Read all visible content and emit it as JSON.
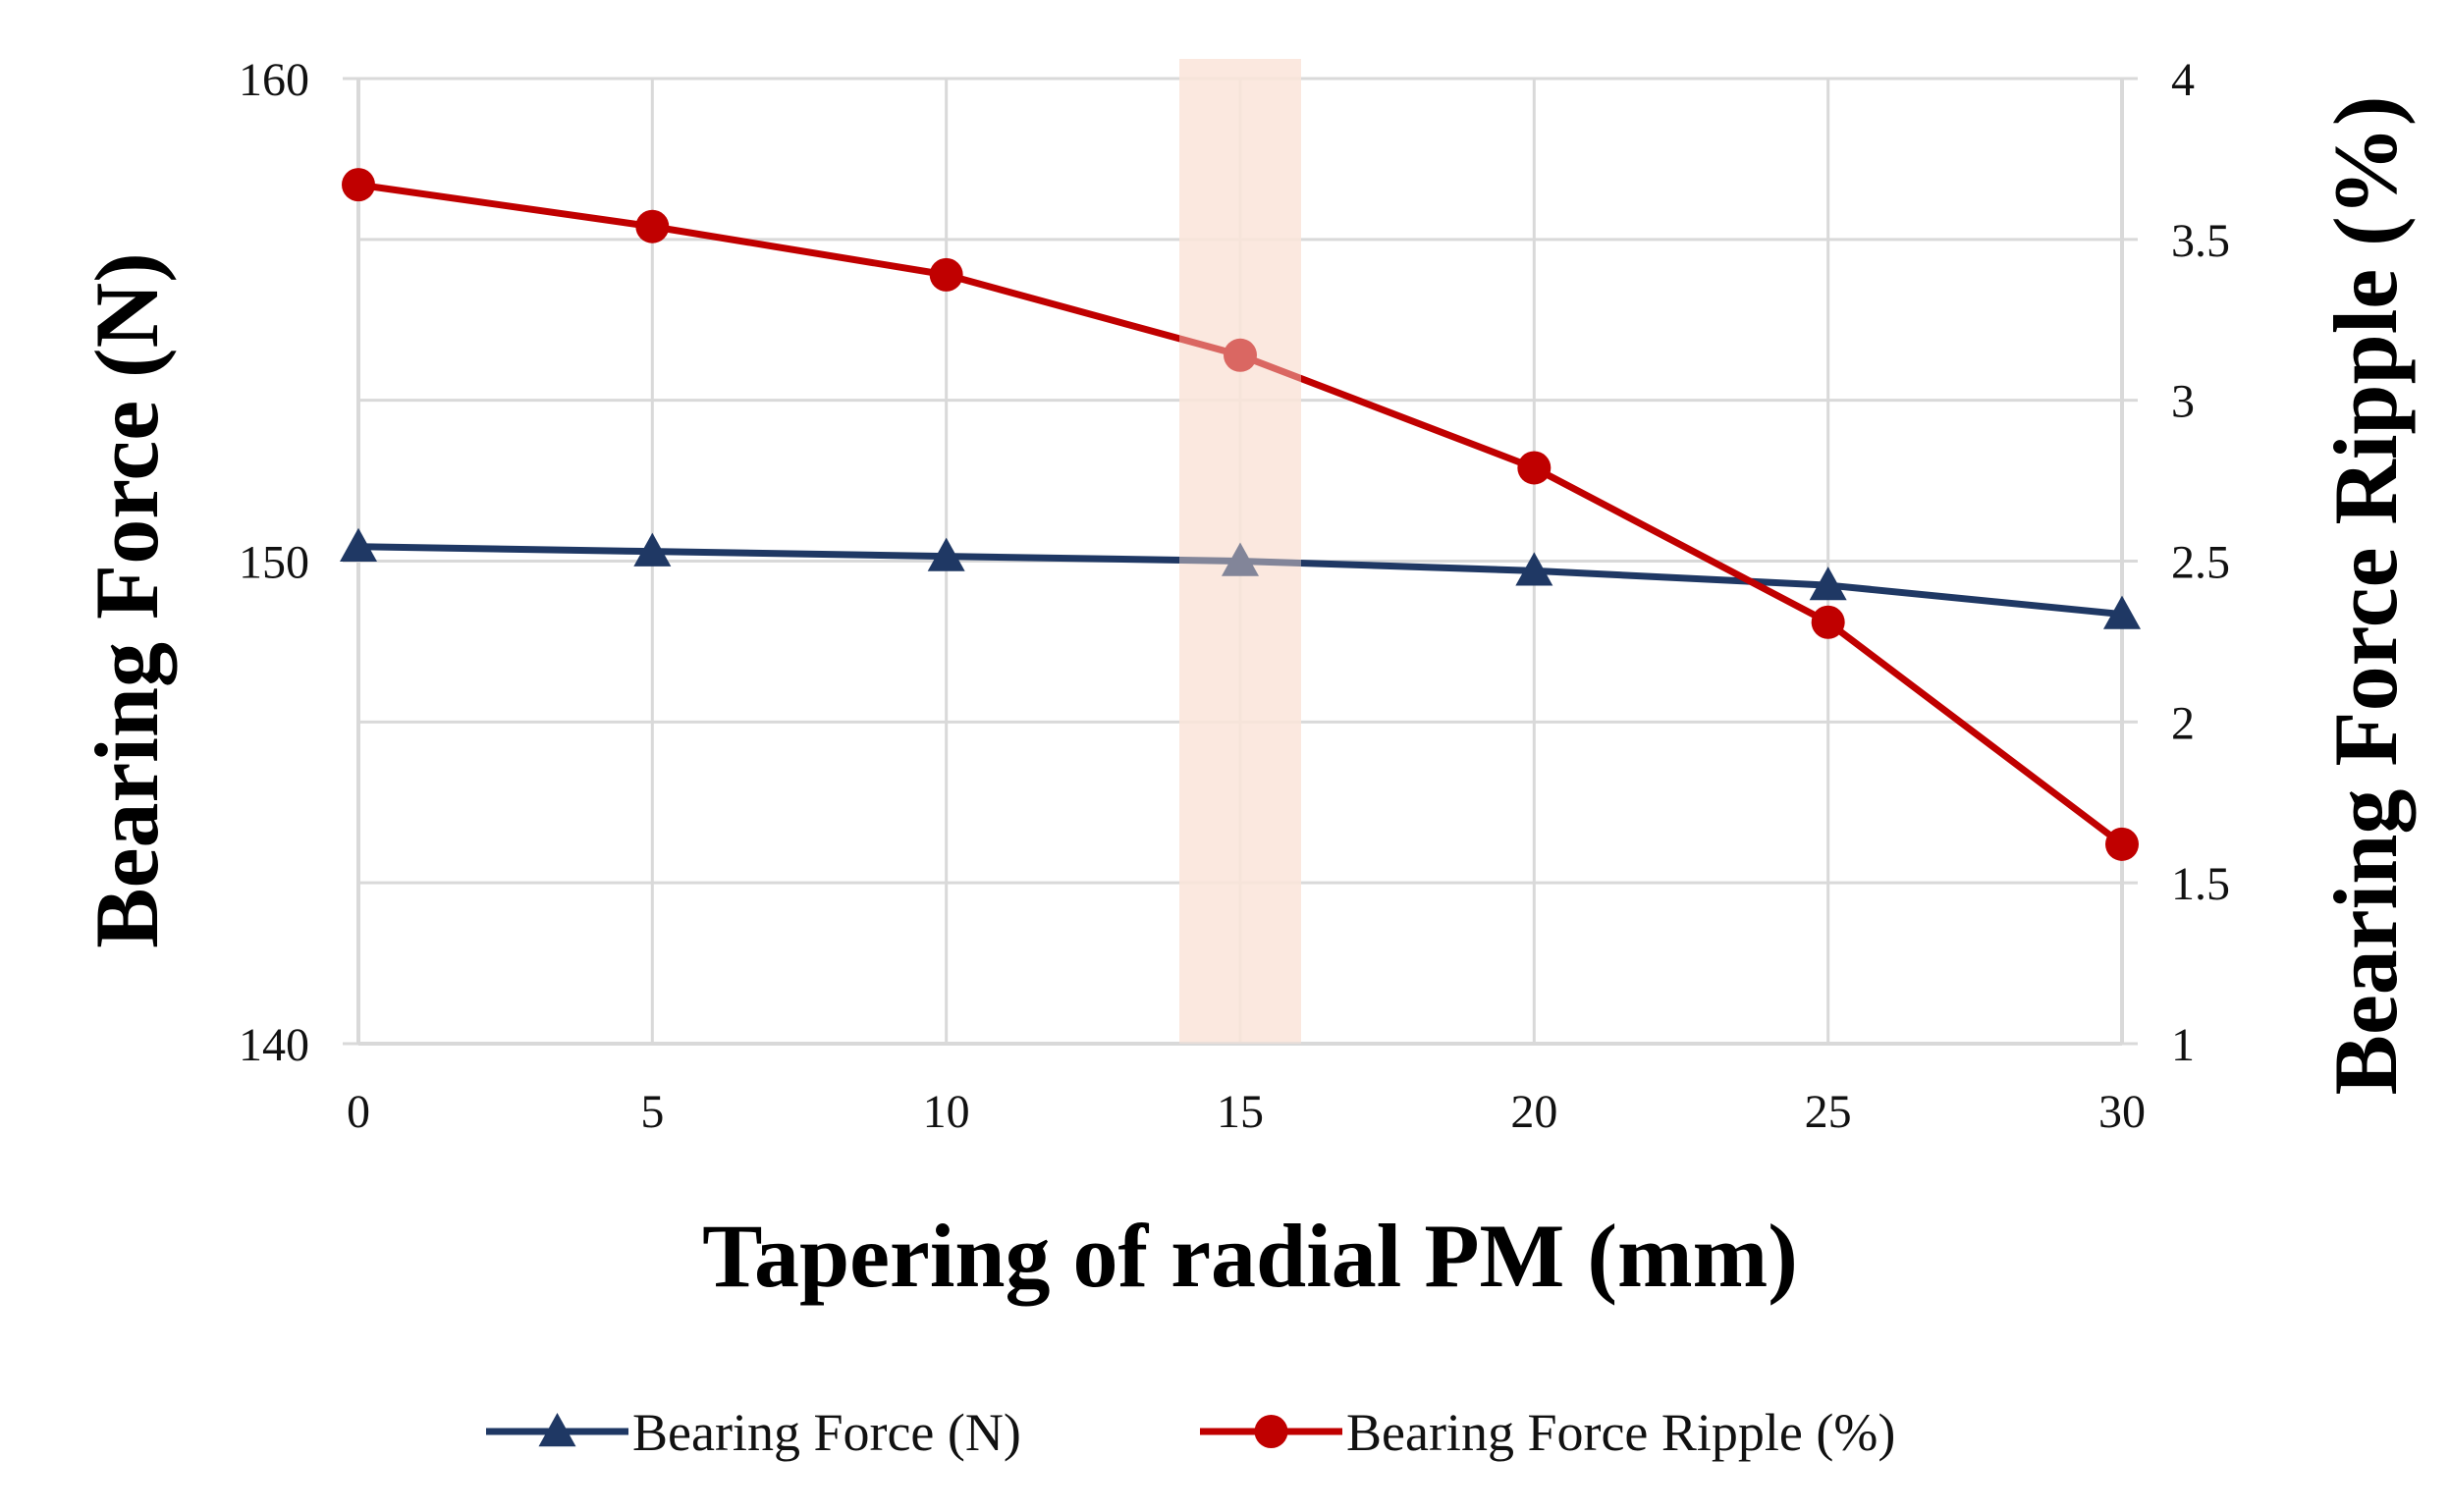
{
  "chart_data": {
    "type": "line",
    "title": "",
    "xlabel": "Tapering of radial PM (mm)",
    "ylabel": "Bearing Force (N)",
    "ylabel_right": "Bearing Force Ripple (%)",
    "x": [
      0,
      5,
      10,
      15,
      20,
      25,
      30
    ],
    "xlim": [
      0,
      30
    ],
    "xticks": [
      "0",
      "5",
      "10",
      "15",
      "20",
      "25",
      "30"
    ],
    "ylim": [
      140,
      160
    ],
    "yticks": [
      "140",
      "150",
      "160"
    ],
    "ylim_right": [
      1,
      4
    ],
    "yticks_right": [
      "1",
      "1.5",
      "2",
      "2.5",
      "3",
      "3.5",
      "4"
    ],
    "grid": true,
    "highlight_x": 15,
    "highlight_color": "#fbe5da",
    "legend_position": "bottom",
    "series": [
      {
        "name": "Bearing Force (N)",
        "axis": "left",
        "marker": "triangle",
        "color": "#1f3864",
        "values": [
          150.3,
          150.2,
          150.1,
          150.0,
          149.8,
          149.5,
          148.9
        ]
      },
      {
        "name": "Bearing Force Ripple (%)",
        "axis": "right",
        "marker": "circle",
        "color": "#c00000",
        "values": [
          3.67,
          3.54,
          3.39,
          3.14,
          2.79,
          2.31,
          1.62
        ]
      }
    ]
  }
}
